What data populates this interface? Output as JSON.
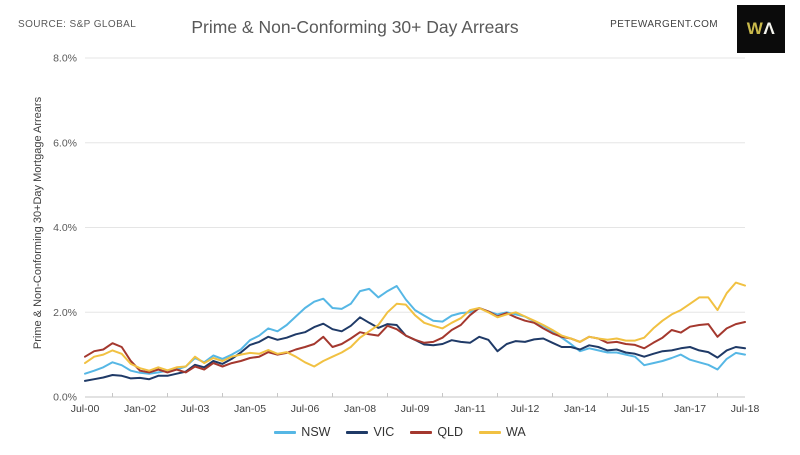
{
  "header": {
    "source": "SOURCE: S&P GLOBAL",
    "title": "Prime & Non-Conforming 30+ Day Arrears",
    "site": "PETEWARGENT.COM",
    "logo_w": "W",
    "logo_a": "Λ"
  },
  "chart_data": {
    "type": "line",
    "title": "Prime & Non-Conforming 30+ Day Arrears",
    "ylabel": "Prime & Non-Conforming 30+Day Mortgage Arrears",
    "ylim": [
      0,
      8
    ],
    "grid": "horizontal",
    "legend_position": "bottom",
    "x_start": "Jul-00",
    "x_end": "Jul-18",
    "sample_interval_months": 3,
    "x_tick_labels": [
      "Jul-00",
      "Jan-02",
      "Jul-03",
      "Jan-05",
      "Jul-06",
      "Jan-08",
      "Jul-09",
      "Jan-11",
      "Jul-12",
      "Jan-14",
      "Jul-15",
      "Jan-17",
      "Jul-18"
    ],
    "y_tick_labels": [
      "0.0%",
      "2.0%",
      "4.0%",
      "6.0%",
      "8.0%"
    ],
    "series": [
      {
        "name": "NSW",
        "color": "#56b7e5",
        "values": [
          0.55,
          0.62,
          0.7,
          0.82,
          0.75,
          0.62,
          0.57,
          0.55,
          0.58,
          0.62,
          0.65,
          0.72,
          0.92,
          0.82,
          0.98,
          0.9,
          1.0,
          1.12,
          1.34,
          1.45,
          1.62,
          1.55,
          1.7,
          1.9,
          2.1,
          2.25,
          2.32,
          2.1,
          2.08,
          2.2,
          2.5,
          2.55,
          2.35,
          2.5,
          2.62,
          2.3,
          2.05,
          1.92,
          1.8,
          1.78,
          1.92,
          1.98,
          2.0,
          2.1,
          2.02,
          1.95,
          2.0,
          1.95,
          1.9,
          1.78,
          1.68,
          1.55,
          1.4,
          1.25,
          1.08,
          1.15,
          1.1,
          1.05,
          1.05,
          1.0,
          0.95,
          0.75,
          0.8,
          0.85,
          0.92,
          1.0,
          0.88,
          0.82,
          0.76,
          0.65,
          0.9,
          1.04,
          1.0
        ]
      },
      {
        "name": "VIC",
        "color": "#1f3a67",
        "values": [
          0.38,
          0.42,
          0.46,
          0.52,
          0.5,
          0.44,
          0.45,
          0.42,
          0.5,
          0.5,
          0.55,
          0.6,
          0.76,
          0.7,
          0.85,
          0.78,
          0.9,
          1.05,
          1.23,
          1.3,
          1.42,
          1.35,
          1.4,
          1.48,
          1.53,
          1.65,
          1.73,
          1.6,
          1.55,
          1.68,
          1.88,
          1.75,
          1.63,
          1.72,
          1.7,
          1.45,
          1.35,
          1.24,
          1.22,
          1.25,
          1.34,
          1.3,
          1.28,
          1.42,
          1.35,
          1.08,
          1.25,
          1.32,
          1.3,
          1.36,
          1.38,
          1.28,
          1.18,
          1.18,
          1.12,
          1.22,
          1.18,
          1.1,
          1.12,
          1.05,
          1.02,
          0.95,
          1.02,
          1.08,
          1.1,
          1.15,
          1.18,
          1.1,
          1.06,
          0.93,
          1.1,
          1.18,
          1.15
        ]
      },
      {
        "name": "QLD",
        "color": "#a4382e",
        "values": [
          0.95,
          1.08,
          1.12,
          1.27,
          1.18,
          0.85,
          0.62,
          0.58,
          0.65,
          0.58,
          0.65,
          0.58,
          0.72,
          0.65,
          0.8,
          0.72,
          0.8,
          0.85,
          0.92,
          0.95,
          1.06,
          1.0,
          1.04,
          1.12,
          1.18,
          1.25,
          1.42,
          1.18,
          1.25,
          1.38,
          1.53,
          1.48,
          1.45,
          1.68,
          1.6,
          1.45,
          1.35,
          1.28,
          1.3,
          1.4,
          1.58,
          1.7,
          1.93,
          2.1,
          2.02,
          1.9,
          1.98,
          1.88,
          1.8,
          1.75,
          1.62,
          1.5,
          1.42,
          1.38,
          1.3,
          1.42,
          1.38,
          1.28,
          1.3,
          1.25,
          1.23,
          1.15,
          1.28,
          1.4,
          1.58,
          1.52,
          1.66,
          1.7,
          1.72,
          1.42,
          1.62,
          1.72,
          1.77
        ]
      },
      {
        "name": "WA",
        "color": "#f1c142",
        "values": [
          0.8,
          0.95,
          1.0,
          1.1,
          1.02,
          0.78,
          0.68,
          0.62,
          0.7,
          0.63,
          0.7,
          0.72,
          0.95,
          0.8,
          0.92,
          0.85,
          0.95,
          1.0,
          1.04,
          1.02,
          1.11,
          1.02,
          1.06,
          0.95,
          0.82,
          0.72,
          0.85,
          0.95,
          1.05,
          1.18,
          1.4,
          1.55,
          1.7,
          2.0,
          2.2,
          2.18,
          1.93,
          1.75,
          1.68,
          1.62,
          1.75,
          1.86,
          2.05,
          2.1,
          2.0,
          1.88,
          1.95,
          2.0,
          1.9,
          1.8,
          1.7,
          1.58,
          1.45,
          1.38,
          1.3,
          1.42,
          1.38,
          1.35,
          1.38,
          1.33,
          1.33,
          1.4,
          1.62,
          1.8,
          1.95,
          2.05,
          2.2,
          2.35,
          2.35,
          2.05,
          2.45,
          2.7,
          2.63
        ]
      }
    ]
  }
}
